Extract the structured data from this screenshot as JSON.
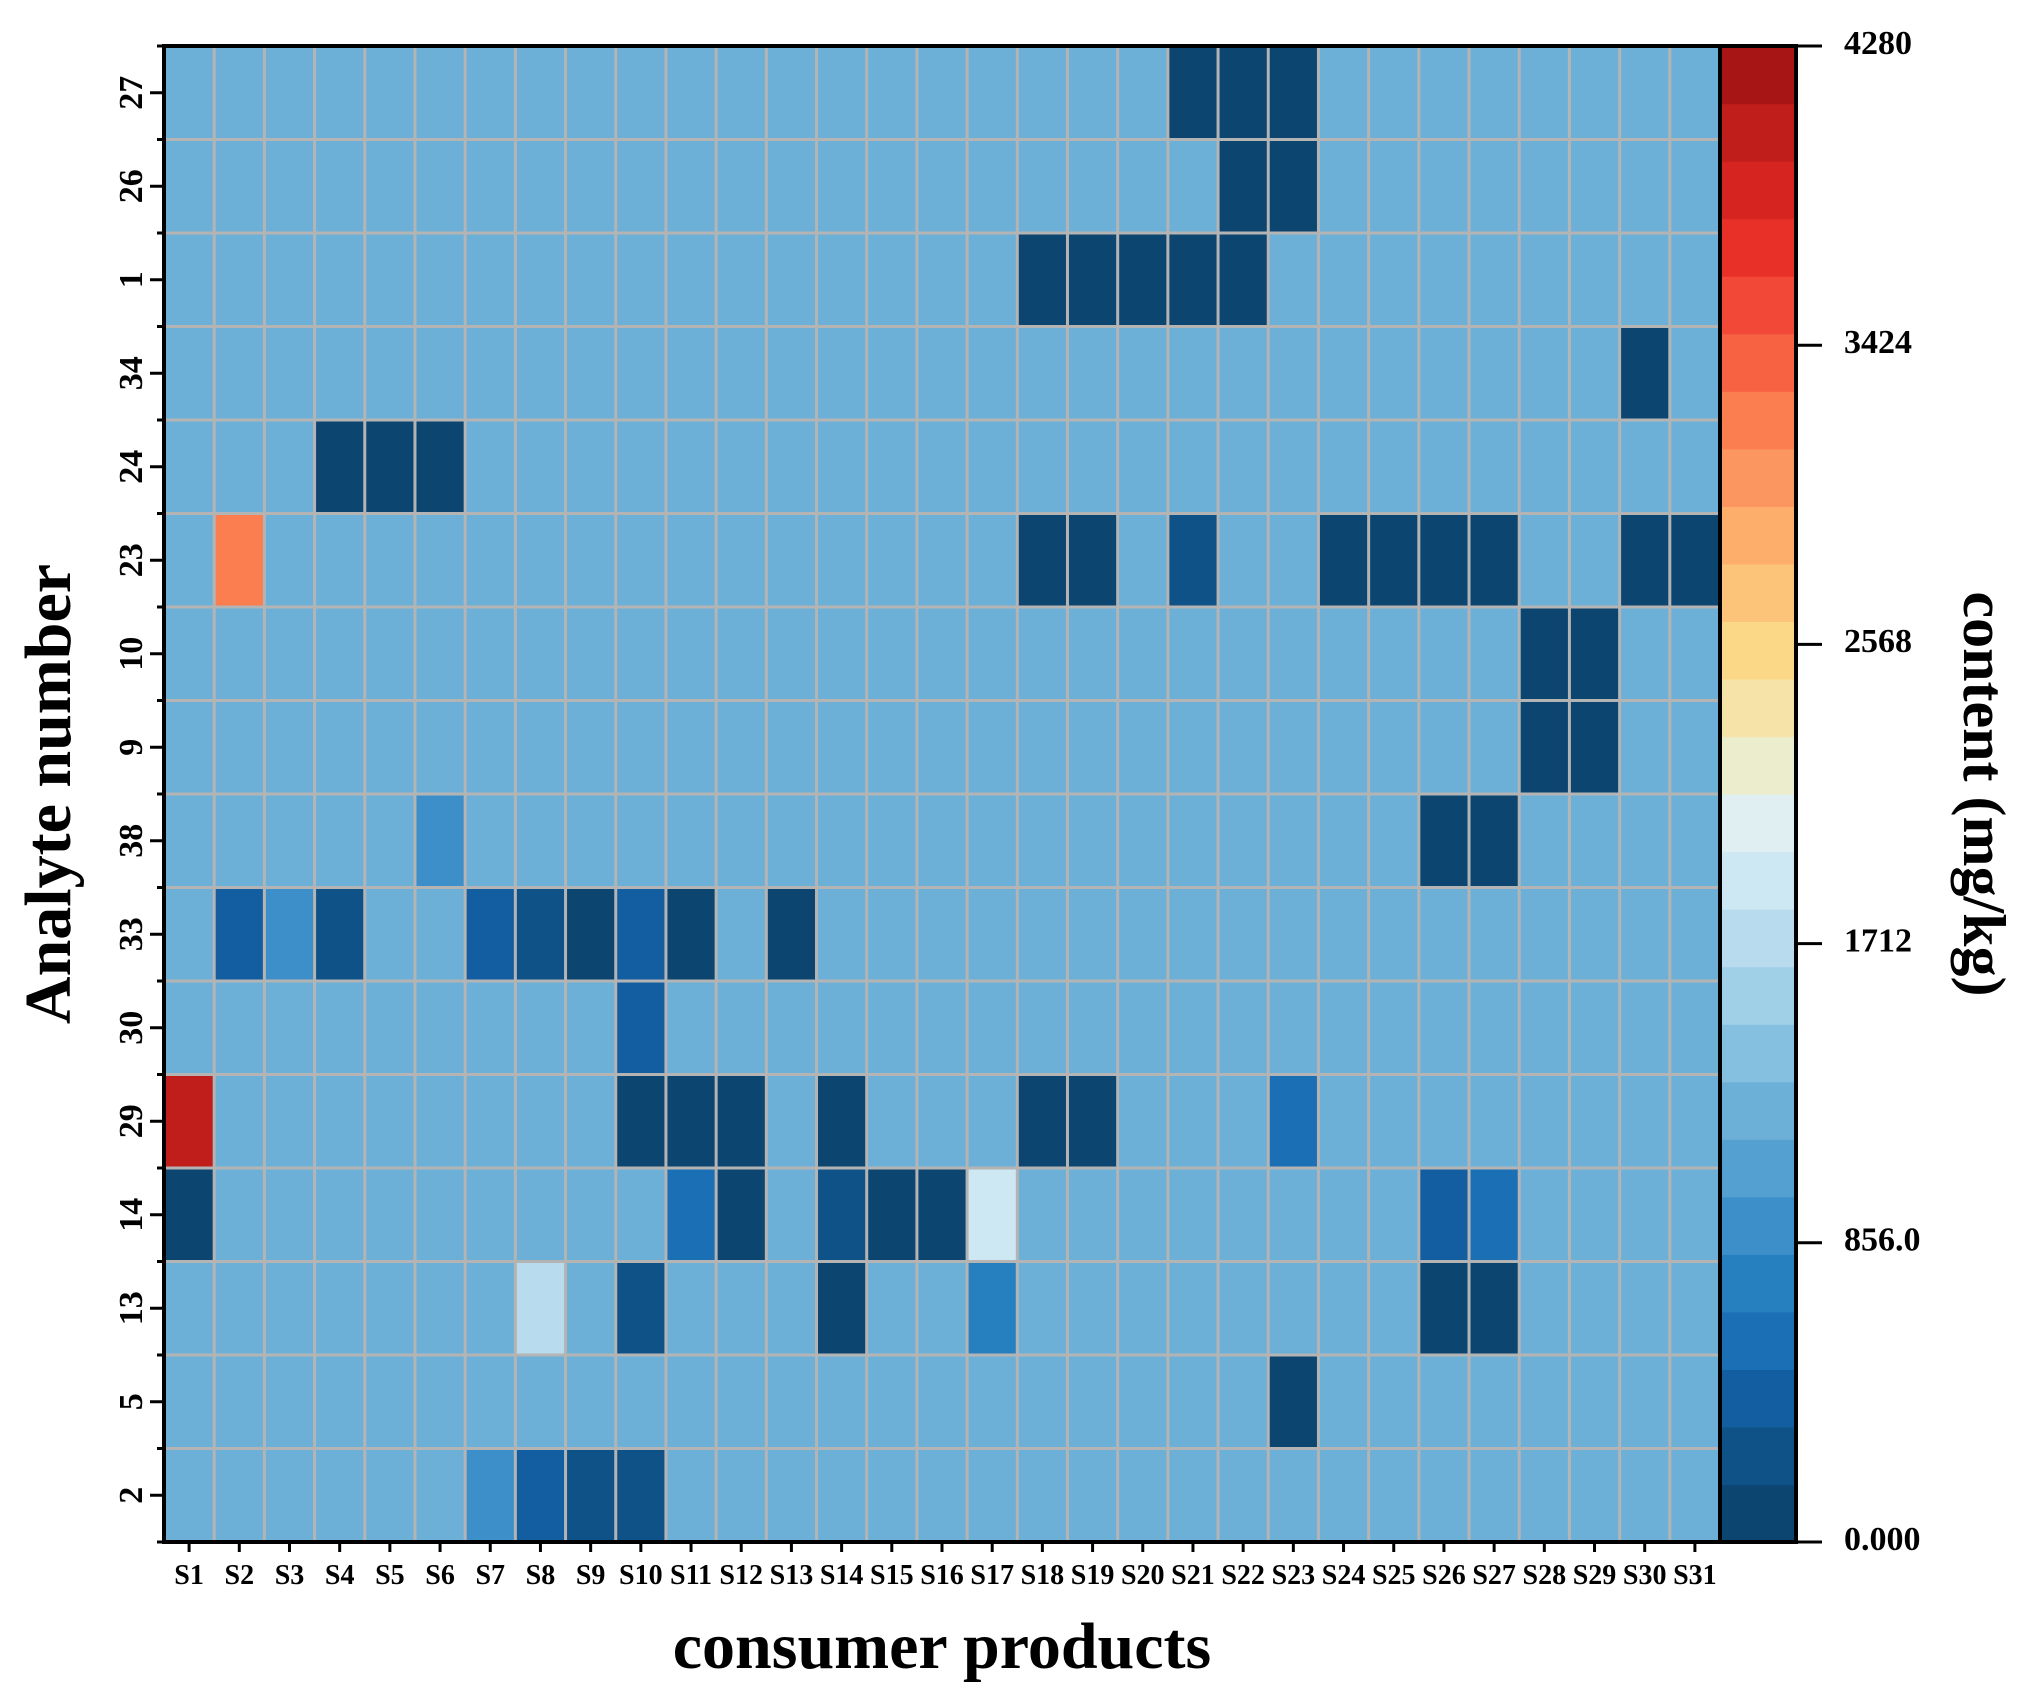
{
  "chart_data": {
    "type": "heatmap",
    "title": "",
    "xlabel": "consumer products",
    "ylabel": "Analyte number",
    "colorbar_label": "content (mg/kg)",
    "x_categories": [
      "S1",
      "S2",
      "S3",
      "S4",
      "S5",
      "S6",
      "S7",
      "S8",
      "S9",
      "S10",
      "S11",
      "S12",
      "S13",
      "S14",
      "S15",
      "S16",
      "S17",
      "S18",
      "S19",
      "S20",
      "S21",
      "S22",
      "S23",
      "S24",
      "S25",
      "S26",
      "S27",
      "S28",
      "S29",
      "S30",
      "S31"
    ],
    "y_categories": [
      "2",
      "5",
      "13",
      "14",
      "29",
      "30",
      "33",
      "38",
      "9",
      "10",
      "23",
      "24",
      "34",
      "1",
      "26",
      "27"
    ],
    "zlim": [
      0,
      4280
    ],
    "colorbar_ticks": [
      "0.000",
      "856.0",
      "1712",
      "2568",
      "3424",
      "4280"
    ],
    "colorbar_tick_values": [
      0,
      856,
      1712,
      2568,
      3424,
      4280
    ],
    "background_value": 1300,
    "cells": [
      [
        "S7",
        "2",
        900
      ],
      [
        "S8",
        "2",
        450
      ],
      [
        "S9",
        "2",
        220
      ],
      [
        "S10",
        "2",
        280
      ],
      [
        "S23",
        "5",
        50
      ],
      [
        "S8",
        "13",
        1700
      ],
      [
        "S10",
        "13",
        280
      ],
      [
        "S14",
        "13",
        110
      ],
      [
        "S17",
        "13",
        700
      ],
      [
        "S26",
        "13",
        110
      ],
      [
        "S27",
        "13",
        110
      ],
      [
        "S1",
        "14",
        110
      ],
      [
        "S11",
        "14",
        500
      ],
      [
        "S12",
        "14",
        150
      ],
      [
        "S14",
        "14",
        300
      ],
      [
        "S15",
        "14",
        110
      ],
      [
        "S16",
        "14",
        110
      ],
      [
        "S17",
        "14",
        1900
      ],
      [
        "S26",
        "14",
        380
      ],
      [
        "S27",
        "14",
        500
      ],
      [
        "S1",
        "29",
        4000
      ],
      [
        "S10",
        "29",
        100
      ],
      [
        "S11",
        "29",
        100
      ],
      [
        "S12",
        "29",
        100
      ],
      [
        "S14",
        "29",
        100
      ],
      [
        "S18",
        "29",
        100
      ],
      [
        "S19",
        "29",
        100
      ],
      [
        "S23",
        "29",
        550
      ],
      [
        "S10",
        "30",
        350
      ],
      [
        "S2",
        "33",
        380
      ],
      [
        "S3",
        "33",
        950
      ],
      [
        "S4",
        "33",
        280
      ],
      [
        "S7",
        "33",
        380
      ],
      [
        "S8",
        "33",
        200
      ],
      [
        "S9",
        "33",
        90
      ],
      [
        "S10",
        "33",
        330
      ],
      [
        "S11",
        "33",
        90
      ],
      [
        "S13",
        "33",
        90
      ],
      [
        "S6",
        "38",
        850
      ],
      [
        "S26",
        "38",
        110
      ],
      [
        "S27",
        "38",
        110
      ],
      [
        "S28",
        "9",
        100
      ],
      [
        "S29",
        "9",
        100
      ],
      [
        "S28",
        "10",
        100
      ],
      [
        "S29",
        "10",
        100
      ],
      [
        "S2",
        "23",
        3150
      ],
      [
        "S18",
        "23",
        110
      ],
      [
        "S19",
        "23",
        110
      ],
      [
        "S21",
        "23",
        260
      ],
      [
        "S24",
        "23",
        110
      ],
      [
        "S25",
        "23",
        110
      ],
      [
        "S26",
        "23",
        110
      ],
      [
        "S27",
        "23",
        110
      ],
      [
        "S30",
        "23",
        110
      ],
      [
        "S31",
        "23",
        110
      ],
      [
        "S4",
        "24",
        110
      ],
      [
        "S5",
        "24",
        110
      ],
      [
        "S6",
        "24",
        110
      ],
      [
        "S30",
        "34",
        110
      ],
      [
        "S18",
        "1",
        110
      ],
      [
        "S19",
        "1",
        110
      ],
      [
        "S20",
        "1",
        110
      ],
      [
        "S21",
        "1",
        110
      ],
      [
        "S22",
        "1",
        110
      ],
      [
        "S22",
        "26",
        110
      ],
      [
        "S23",
        "26",
        110
      ],
      [
        "S21",
        "27",
        110
      ],
      [
        "S22",
        "27",
        110
      ],
      [
        "S23",
        "27",
        110
      ]
    ],
    "colorscale": [
      "#0c4570",
      "#0f5288",
      "#135ea0",
      "#1a6fb5",
      "#2680c0",
      "#3c8fc8",
      "#54a0d0",
      "#6cb0d8",
      "#86c0e0",
      "#a0d0e8",
      "#b8dcee",
      "#cde8f3",
      "#e0f0f2",
      "#ecedcc",
      "#f5e3a8",
      "#fad888",
      "#fcc478",
      "#fcae6a",
      "#fb9660",
      "#fa7e50",
      "#f76242",
      "#f24838",
      "#e83028",
      "#d62520",
      "#c01e1a",
      "#a81515"
    ]
  }
}
